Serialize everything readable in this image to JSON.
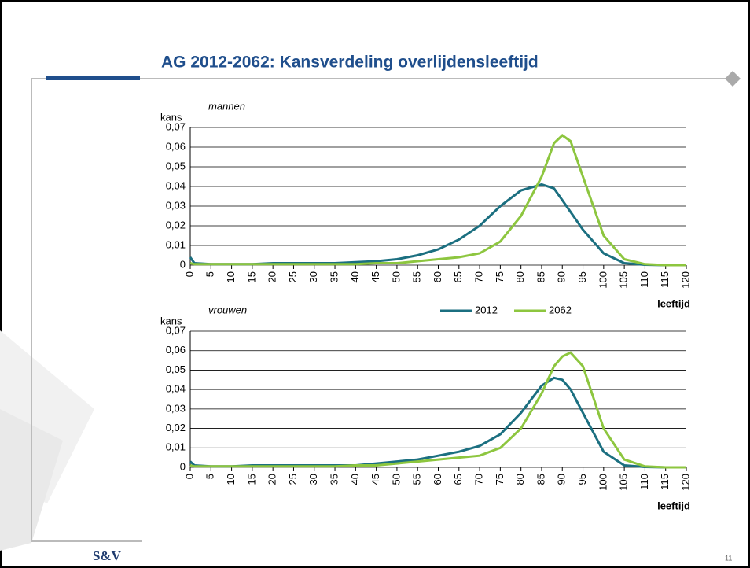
{
  "title": "AG 2012-2062: Kansverdeling overlijdensleeftijd",
  "footer": "S&V",
  "page_number": 11,
  "chart_data": [
    {
      "type": "line",
      "title": "mannen",
      "ylabel": "kans",
      "xlabel": "leeftijd",
      "x": [
        0,
        1,
        5,
        10,
        15,
        20,
        25,
        30,
        35,
        40,
        45,
        50,
        55,
        60,
        65,
        70,
        75,
        80,
        85,
        88,
        90,
        92,
        95,
        100,
        105,
        110,
        115,
        120
      ],
      "series": [
        {
          "color": "#1b6f80",
          "values": [
            0.004,
            0.001,
            0.0005,
            0.0005,
            0.0005,
            0.001,
            0.001,
            0.001,
            0.001,
            0.0015,
            0.002,
            0.003,
            0.005,
            0.008,
            0.013,
            0.02,
            0.03,
            0.038,
            0.041,
            0.039,
            0.033,
            0.027,
            0.018,
            0.006,
            0.001,
            0.0002,
            0,
            0
          ]
        },
        {
          "color": "#8dc63f",
          "values": [
            0.001,
            0.0005,
            0.0005,
            0.0005,
            0.0005,
            0.0005,
            0.0005,
            0.0005,
            0.0005,
            0.0005,
            0.001,
            0.001,
            0.002,
            0.003,
            0.004,
            0.006,
            0.012,
            0.025,
            0.045,
            0.062,
            0.066,
            0.063,
            0.045,
            0.015,
            0.003,
            0.0005,
            0,
            0
          ]
        }
      ],
      "xlim": [
        0,
        120
      ],
      "xticks": [
        0,
        5,
        10,
        15,
        20,
        25,
        30,
        35,
        40,
        45,
        50,
        55,
        60,
        65,
        70,
        75,
        80,
        85,
        90,
        95,
        100,
        105,
        110,
        115,
        120
      ],
      "ylim": [
        0,
        0.07
      ],
      "yticks": [
        0,
        {
          "value": 0.01,
          "label": "0,01"
        },
        {
          "value": 0.02,
          "label": "0,02"
        },
        {
          "value": 0.03,
          "label": "0,03"
        },
        {
          "value": 0.04,
          "label": "0,04"
        },
        {
          "value": 0.05,
          "label": "0,05"
        },
        {
          "value": 0.06,
          "label": "0,06"
        },
        {
          "value": 0.07,
          "label": "0,07"
        }
      ],
      "grid": true,
      "legend": false
    },
    {
      "type": "line",
      "title": "vrouwen",
      "ylabel": "kans",
      "xlabel": "leeftijd",
      "x": [
        0,
        1,
        5,
        10,
        15,
        20,
        25,
        30,
        35,
        40,
        45,
        50,
        55,
        60,
        65,
        70,
        75,
        80,
        85,
        88,
        90,
        92,
        95,
        100,
        105,
        110,
        115,
        120
      ],
      "series": [
        {
          "name": "2012",
          "color": "#1b6f80",
          "values": [
            0.003,
            0.001,
            0.0005,
            0.0005,
            0.001,
            0.001,
            0.001,
            0.001,
            0.001,
            0.001,
            0.002,
            0.003,
            0.004,
            0.006,
            0.008,
            0.011,
            0.017,
            0.028,
            0.042,
            0.046,
            0.045,
            0.04,
            0.028,
            0.008,
            0.001,
            0.0002,
            0,
            0
          ]
        },
        {
          "name": "2062",
          "color": "#8dc63f",
          "values": [
            0.001,
            0.0005,
            0.0005,
            0.0005,
            0.0005,
            0.0005,
            0.0005,
            0.0005,
            0.0005,
            0.001,
            0.001,
            0.002,
            0.003,
            0.004,
            0.005,
            0.006,
            0.01,
            0.02,
            0.038,
            0.052,
            0.057,
            0.059,
            0.052,
            0.02,
            0.004,
            0.0005,
            0,
            0
          ]
        }
      ],
      "xlim": [
        0,
        120
      ],
      "xticks": [
        0,
        5,
        10,
        15,
        20,
        25,
        30,
        35,
        40,
        45,
        50,
        55,
        60,
        65,
        70,
        75,
        80,
        85,
        90,
        95,
        100,
        105,
        110,
        115,
        120
      ],
      "ylim": [
        0,
        0.07
      ],
      "yticks": [
        0,
        {
          "value": 0.01,
          "label": "0,01"
        },
        {
          "value": 0.02,
          "label": "0,02"
        },
        {
          "value": 0.03,
          "label": "0,03"
        },
        {
          "value": 0.04,
          "label": "0,04"
        },
        {
          "value": 0.05,
          "label": "0,05"
        },
        {
          "value": 0.06,
          "label": "0,06"
        },
        {
          "value": 0.07,
          "label": "0,07"
        }
      ],
      "grid": true,
      "legend": "top-right"
    }
  ]
}
